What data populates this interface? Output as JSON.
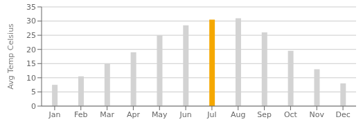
{
  "chart_data": {
    "type": "bar",
    "categories": [
      "Jan",
      "Feb",
      "Mar",
      "Apr",
      "May",
      "Jun",
      "Jul",
      "Aug",
      "Sep",
      "Oct",
      "Nov",
      "Dec"
    ],
    "values": [
      7.5,
      10.5,
      15.0,
      19.0,
      25.0,
      28.5,
      30.5,
      31.0,
      26.0,
      19.5,
      13.0,
      8.0
    ],
    "colors": [
      "#d3d3d3",
      "#d3d3d3",
      "#d3d3d3",
      "#d3d3d3",
      "#d3d3d3",
      "#d3d3d3",
      "#f5a800",
      "#d3d3d3",
      "#d3d3d3",
      "#d3d3d3",
      "#d3d3d3",
      "#d3d3d3"
    ],
    "ylabel": "Avg Temp Celsius",
    "ylim": [
      0,
      35
    ],
    "yticks": [
      0,
      5,
      10,
      15,
      20,
      25,
      30,
      35
    ],
    "grid": true
  }
}
